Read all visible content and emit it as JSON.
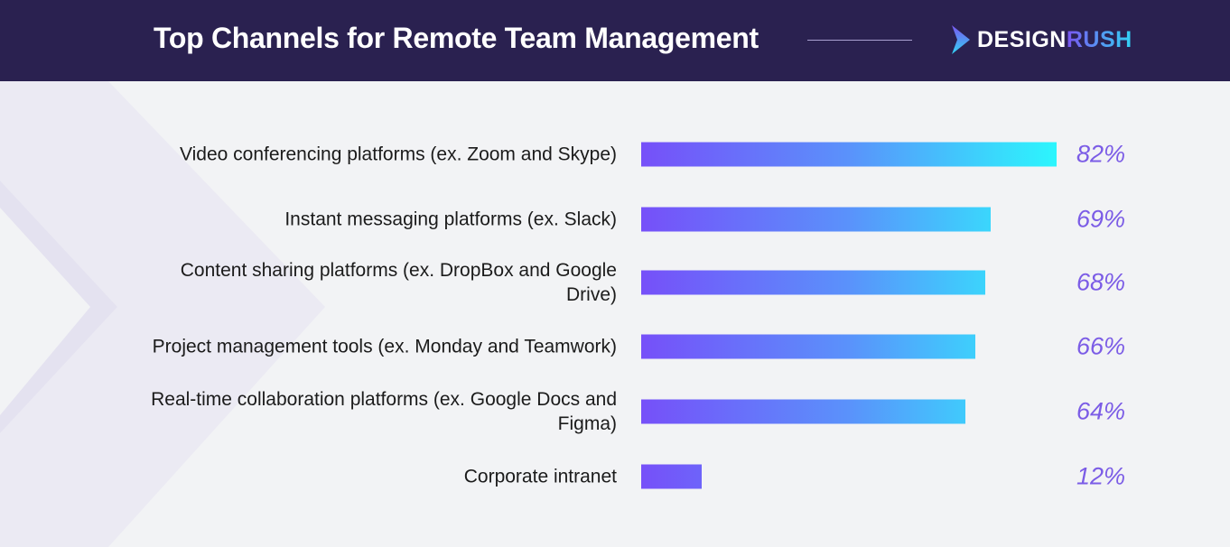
{
  "header": {
    "title": "Top Channels for Remote Team Management",
    "logo_left": "DESIGN",
    "logo_right": "RUSH"
  },
  "colors": {
    "header_bg": "#2a2150",
    "bar_start": "#7650f9",
    "bar_end": "#2cf6fd",
    "value_text": "#7b5ce6"
  },
  "chart_data": {
    "type": "bar",
    "orientation": "horizontal",
    "title": "Top Channels for Remote Team Management",
    "xlim": [
      0,
      82
    ],
    "categories": [
      "Video conferencing platforms (ex. Zoom and Skype)",
      "Instant messaging platforms (ex. Slack)",
      "Content sharing platforms (ex. DropBox and Google Drive)",
      "Project management tools (ex. Monday and Teamwork)",
      "Real-time collaboration platforms (ex. Google Docs and Figma)",
      "Corporate intranet"
    ],
    "values": [
      82,
      69,
      68,
      66,
      64,
      12
    ],
    "labels": [
      "82%",
      "69%",
      "68%",
      "66%",
      "64%",
      "12%"
    ]
  }
}
